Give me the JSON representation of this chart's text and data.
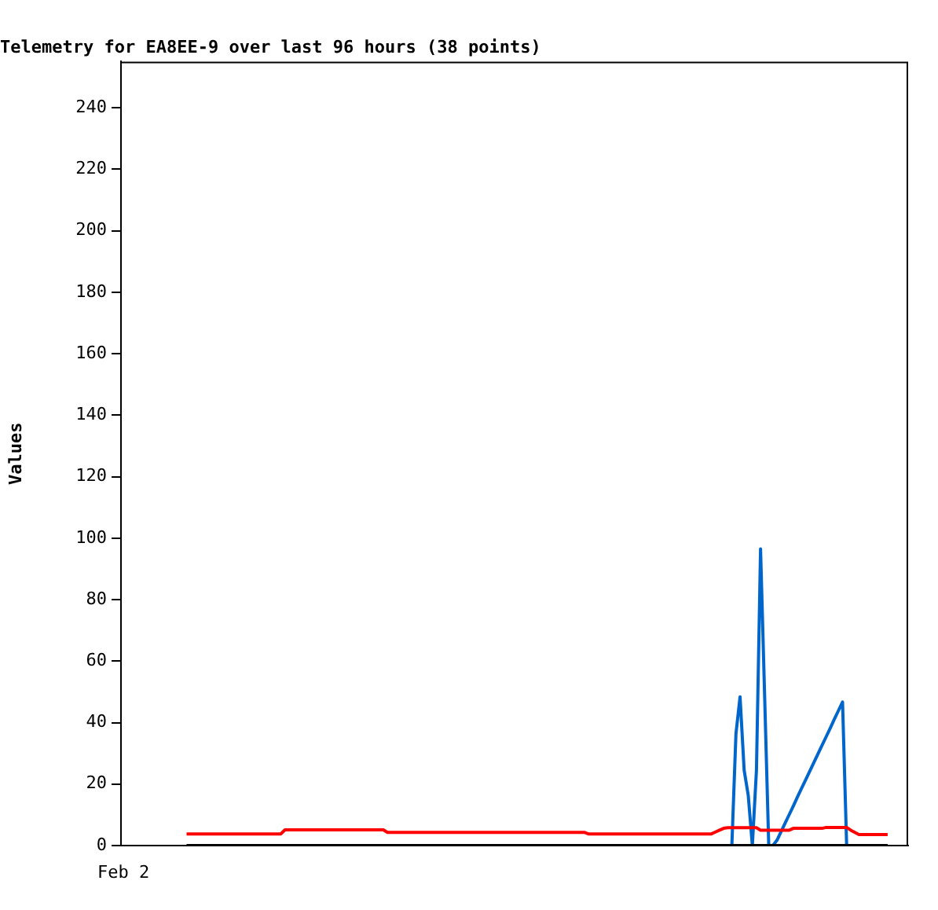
{
  "chart_data": {
    "type": "line",
    "title": "Telemetry for EA8EE-9 over last 96 hours (38 points)",
    "ylabel": "Values",
    "annotations": [
      "Feb 2"
    ],
    "categories": [
      null,
      null,
      null,
      null,
      null,
      null,
      null,
      null,
      null,
      null,
      null,
      null,
      null,
      null,
      null,
      null,
      null,
      null,
      null,
      null,
      null,
      null,
      null,
      null,
      null,
      null,
      null,
      null,
      null,
      null,
      null,
      null,
      null,
      null,
      null,
      null,
      null,
      null,
      null,
      null,
      null,
      null,
      null,
      null,
      null,
      null,
      null,
      null,
      null,
      null,
      null,
      null,
      null,
      null,
      null,
      null,
      null,
      null,
      null,
      null,
      null,
      null,
      null,
      null,
      null,
      null,
      null,
      null,
      null,
      null,
      null,
      null,
      null,
      null,
      null,
      null,
      null,
      null,
      null,
      null,
      null,
      null,
      null,
      null,
      null,
      null,
      null,
      null,
      null,
      null,
      null,
      null,
      null,
      null,
      null,
      null,
      null,
      null,
      null,
      null,
      null,
      null,
      null,
      null,
      null,
      null,
      null,
      null,
      null,
      null,
      null,
      null,
      null,
      null,
      null,
      null,
      null,
      null,
      null,
      null,
      null,
      null,
      null,
      null,
      null,
      null,
      null,
      null,
      null,
      null,
      null,
      null,
      null,
      null,
      null,
      null,
      null,
      null,
      null,
      null,
      null,
      null,
      null,
      null,
      null,
      null,
      null,
      null,
      null,
      null,
      null,
      null,
      null,
      null,
      null,
      null,
      null,
      null,
      null,
      null,
      null,
      null,
      null,
      null,
      null,
      null,
      null,
      null,
      null,
      null,
      null,
      null,
      null,
      null,
      null,
      null,
      null,
      null,
      null,
      null,
      null,
      null,
      null,
      null,
      null,
      null,
      null,
      null,
      null,
      null,
      null,
      null,
      null
    ],
    "ylim": [
      0,
      255
    ],
    "yticks": [
      0,
      20,
      40,
      60,
      80,
      100,
      120,
      140,
      160,
      180,
      200,
      220,
      240
    ],
    "grid": false,
    "legend": false,
    "marker": "none",
    "line_style": "solid",
    "series": [
      {
        "color": "#000000",
        "values": [
          null,
          null,
          null,
          null,
          null,
          null,
          null,
          null,
          null,
          null,
          null,
          null,
          null,
          null,
          null,
          null,
          0,
          0,
          0,
          0,
          0,
          0,
          0,
          0,
          0,
          0,
          0,
          0,
          0,
          0,
          0,
          0,
          0,
          0,
          0,
          0,
          0,
          0,
          0,
          0,
          0,
          0,
          0,
          0,
          0,
          0,
          0,
          0,
          0,
          0,
          0,
          0,
          0,
          0,
          0,
          0,
          0,
          0,
          0,
          0,
          0,
          0,
          0,
          0,
          0,
          0,
          0,
          0,
          0,
          0,
          0,
          0,
          0,
          0,
          0,
          0,
          0,
          0,
          0,
          0,
          0,
          0,
          0,
          0,
          0,
          0,
          0,
          0,
          0,
          0,
          0,
          0,
          0,
          0,
          0,
          0,
          0,
          0,
          0,
          0,
          0,
          0,
          0,
          0,
          0,
          0,
          0,
          0,
          0,
          0,
          0,
          0,
          0,
          0,
          0,
          0,
          0,
          0,
          0,
          0,
          0,
          0,
          0,
          0,
          0,
          0,
          0,
          0,
          0,
          0,
          0,
          0,
          0,
          0,
          0,
          0,
          0,
          0,
          0,
          0,
          0,
          0,
          0,
          0,
          0,
          0,
          0,
          0,
          0,
          0,
          0,
          0,
          0,
          0,
          0,
          0,
          0,
          0,
          0,
          0,
          0,
          0,
          0,
          0,
          0,
          0,
          0,
          0,
          0,
          0,
          0,
          0,
          0,
          0,
          0,
          0,
          0,
          0,
          0,
          0,
          0,
          0,
          0,
          0,
          0,
          0,
          0,
          0,
          null,
          null,
          null,
          null,
          null
        ]
      },
      {
        "color": "#ff0000",
        "values": [
          null,
          null,
          null,
          null,
          null,
          null,
          null,
          null,
          null,
          null,
          null,
          null,
          null,
          null,
          null,
          null,
          3.8,
          3.8,
          3.8,
          3.8,
          3.8,
          3.8,
          3.8,
          3.8,
          3.8,
          3.8,
          3.8,
          3.8,
          3.8,
          3.8,
          3.8,
          3.8,
          3.8,
          3.8,
          3.8,
          3.8,
          3.8,
          3.8,
          3.8,
          3.8,
          5.1,
          5.1,
          5.1,
          5.1,
          5.1,
          5.1,
          5.1,
          5.1,
          5.1,
          5.1,
          5.1,
          5.1,
          5.1,
          5.1,
          5.1,
          5.1,
          5.1,
          5.1,
          5.1,
          5.1,
          5.1,
          5.1,
          5.1,
          5.1,
          5.1,
          4.3,
          4.3,
          4.3,
          4.3,
          4.3,
          4.3,
          4.3,
          4.3,
          4.3,
          4.3,
          4.3,
          4.3,
          4.3,
          4.3,
          4.3,
          4.3,
          4.3,
          4.3,
          4.3,
          4.3,
          4.3,
          4.3,
          4.3,
          4.3,
          4.3,
          4.3,
          4.3,
          4.3,
          4.3,
          4.3,
          4.3,
          4.3,
          4.3,
          4.3,
          4.3,
          4.3,
          4.3,
          4.3,
          4.3,
          4.3,
          4.3,
          4.3,
          4.3,
          4.3,
          4.3,
          4.3,
          4.3,
          4.3,
          4.3,
          3.8,
          3.8,
          3.8,
          3.8,
          3.8,
          3.8,
          3.8,
          3.8,
          3.8,
          3.8,
          3.8,
          3.8,
          3.8,
          3.8,
          3.8,
          3.8,
          3.8,
          3.8,
          3.8,
          3.8,
          3.8,
          3.8,
          3.8,
          3.8,
          3.8,
          3.8,
          3.8,
          3.8,
          3.8,
          3.8,
          3.8,
          4.4,
          5.0,
          5.6,
          5.8,
          5.8,
          5.8,
          5.8,
          5.8,
          5.8,
          5.8,
          5.8,
          5.0,
          5.0,
          5.0,
          5.0,
          5.0,
          5.0,
          5.0,
          5.0,
          5.6,
          5.6,
          5.6,
          5.6,
          5.6,
          5.6,
          5.6,
          5.6,
          5.9,
          5.9,
          5.9,
          5.9,
          5.9,
          5.9,
          5.0,
          4.3,
          3.6,
          3.6,
          3.6,
          3.6,
          3.6,
          3.6,
          3.6,
          3.6,
          null,
          null,
          null,
          null,
          null
        ]
      },
      {
        "color": "#0066cc",
        "values": [
          null,
          null,
          null,
          null,
          null,
          null,
          null,
          null,
          null,
          null,
          null,
          null,
          null,
          null,
          null,
          null,
          null,
          null,
          null,
          null,
          null,
          null,
          null,
          null,
          null,
          null,
          null,
          null,
          null,
          null,
          null,
          null,
          null,
          null,
          null,
          null,
          null,
          null,
          null,
          null,
          null,
          null,
          null,
          null,
          null,
          null,
          null,
          null,
          null,
          null,
          null,
          null,
          null,
          null,
          null,
          null,
          null,
          null,
          null,
          null,
          null,
          null,
          null,
          null,
          null,
          null,
          null,
          null,
          null,
          null,
          null,
          null,
          null,
          null,
          null,
          null,
          null,
          null,
          null,
          null,
          null,
          null,
          null,
          null,
          null,
          null,
          null,
          null,
          null,
          null,
          null,
          null,
          null,
          null,
          null,
          null,
          null,
          null,
          null,
          null,
          null,
          null,
          null,
          null,
          null,
          null,
          null,
          null,
          null,
          null,
          null,
          null,
          null,
          null,
          null,
          null,
          null,
          null,
          null,
          null,
          null,
          null,
          null,
          null,
          null,
          null,
          null,
          null,
          null,
          null,
          null,
          null,
          null,
          null,
          null,
          null,
          null,
          null,
          null,
          null,
          null,
          null,
          null,
          null,
          null,
          null,
          null,
          null,
          null,
          0,
          36.4,
          48.4,
          24.5,
          16.3,
          0,
          24.5,
          96.5,
          48.4,
          0,
          0,
          1.7,
          4.5,
          7.3,
          10.1,
          12.9,
          15.8,
          18.6,
          21.4,
          24.2,
          27.0,
          29.8,
          32.6,
          35.4,
          38.2,
          41.1,
          43.9,
          46.7,
          0,
          null,
          null,
          null,
          null,
          null,
          null,
          null,
          null,
          null,
          null,
          null,
          null,
          null,
          null,
          null
        ]
      }
    ]
  }
}
